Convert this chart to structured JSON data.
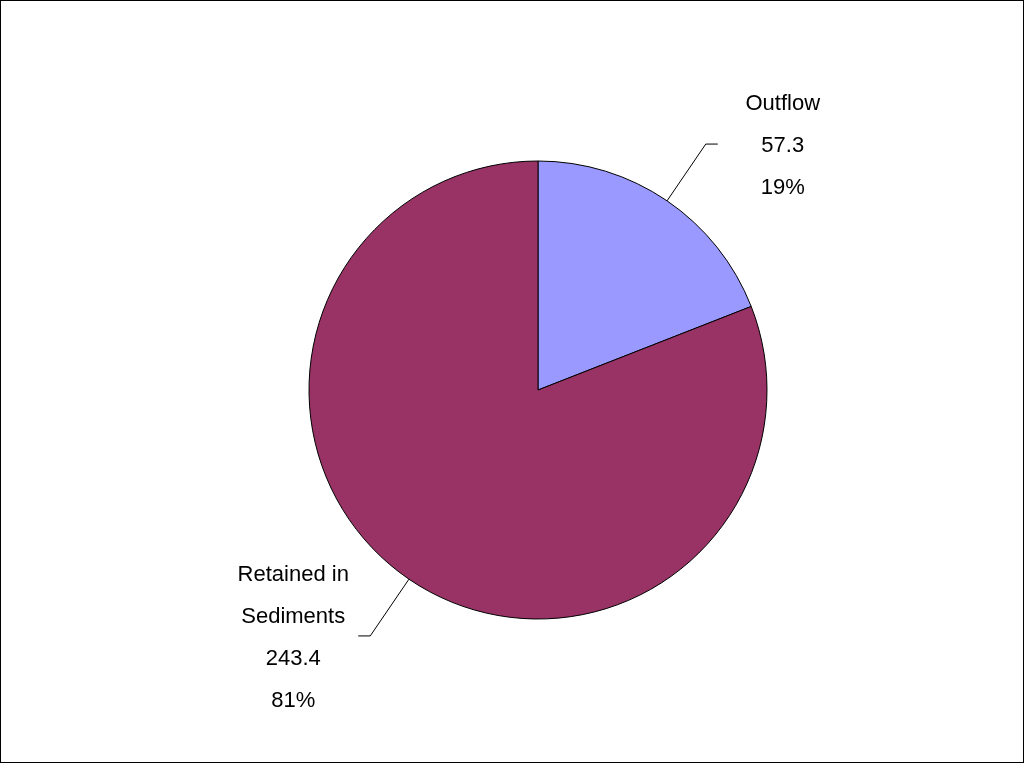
{
  "chart_data": {
    "type": "pie",
    "categories": [
      "Outflow",
      "Retained in Sediments"
    ],
    "values": [
      57.3,
      243.4
    ],
    "colors": [
      "#9999ff",
      "#993366"
    ],
    "value_labels": [
      "57.3\n19%",
      "243.4\n81%"
    ]
  }
}
